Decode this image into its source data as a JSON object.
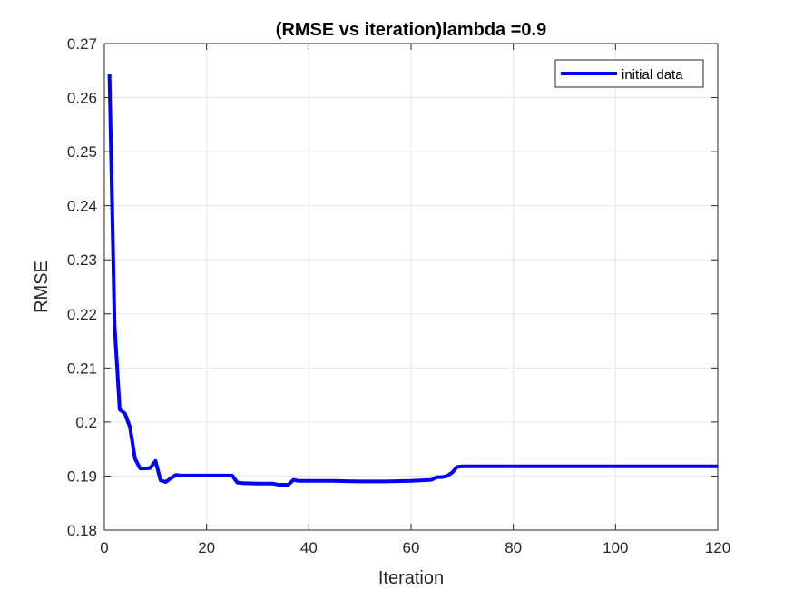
{
  "chart_data": {
    "type": "line",
    "title": "(RMSE vs iteration)lambda =0.9",
    "xlabel": "Iteration",
    "ylabel": "RMSE",
    "xlim": [
      0,
      120
    ],
    "ylim": [
      0.18,
      0.27
    ],
    "xticks": [
      0,
      20,
      40,
      60,
      80,
      100,
      120
    ],
    "yticks": [
      0.18,
      0.19,
      0.2,
      0.21,
      0.22,
      0.23,
      0.24,
      0.25,
      0.26,
      0.27
    ],
    "xtick_labels": [
      "0",
      "20",
      "40",
      "60",
      "80",
      "100",
      "120"
    ],
    "ytick_labels": [
      "0.18",
      "0.19",
      "0.2",
      "0.21",
      "0.22",
      "0.23",
      "0.24",
      "0.25",
      "0.26",
      "0.27"
    ],
    "grid": true,
    "legend_position": "top-right",
    "series": [
      {
        "name": "initial data",
        "color": "#0000ff",
        "x": [
          1,
          2,
          3,
          4,
          5,
          6,
          7,
          8,
          9,
          10,
          11,
          12,
          13,
          14,
          15,
          20,
          25,
          26,
          27,
          30,
          33,
          34,
          36,
          37,
          38,
          40,
          45,
          50,
          55,
          60,
          64,
          65,
          66,
          67,
          68,
          69,
          70,
          75,
          80,
          100,
          120
        ],
        "y": [
          0.2643,
          0.2178,
          0.2023,
          0.2016,
          0.1991,
          0.1932,
          0.1914,
          0.1914,
          0.1915,
          0.1928,
          0.1892,
          0.1889,
          0.1896,
          0.1902,
          0.1901,
          0.1901,
          0.1901,
          0.1888,
          0.1887,
          0.1886,
          0.1886,
          0.1884,
          0.1884,
          0.1893,
          0.1891,
          0.1891,
          0.1891,
          0.189,
          0.189,
          0.1891,
          0.1893,
          0.1898,
          0.1898,
          0.19,
          0.1906,
          0.1917,
          0.1918,
          0.1918,
          0.1918,
          0.1918,
          0.1918
        ]
      }
    ]
  }
}
